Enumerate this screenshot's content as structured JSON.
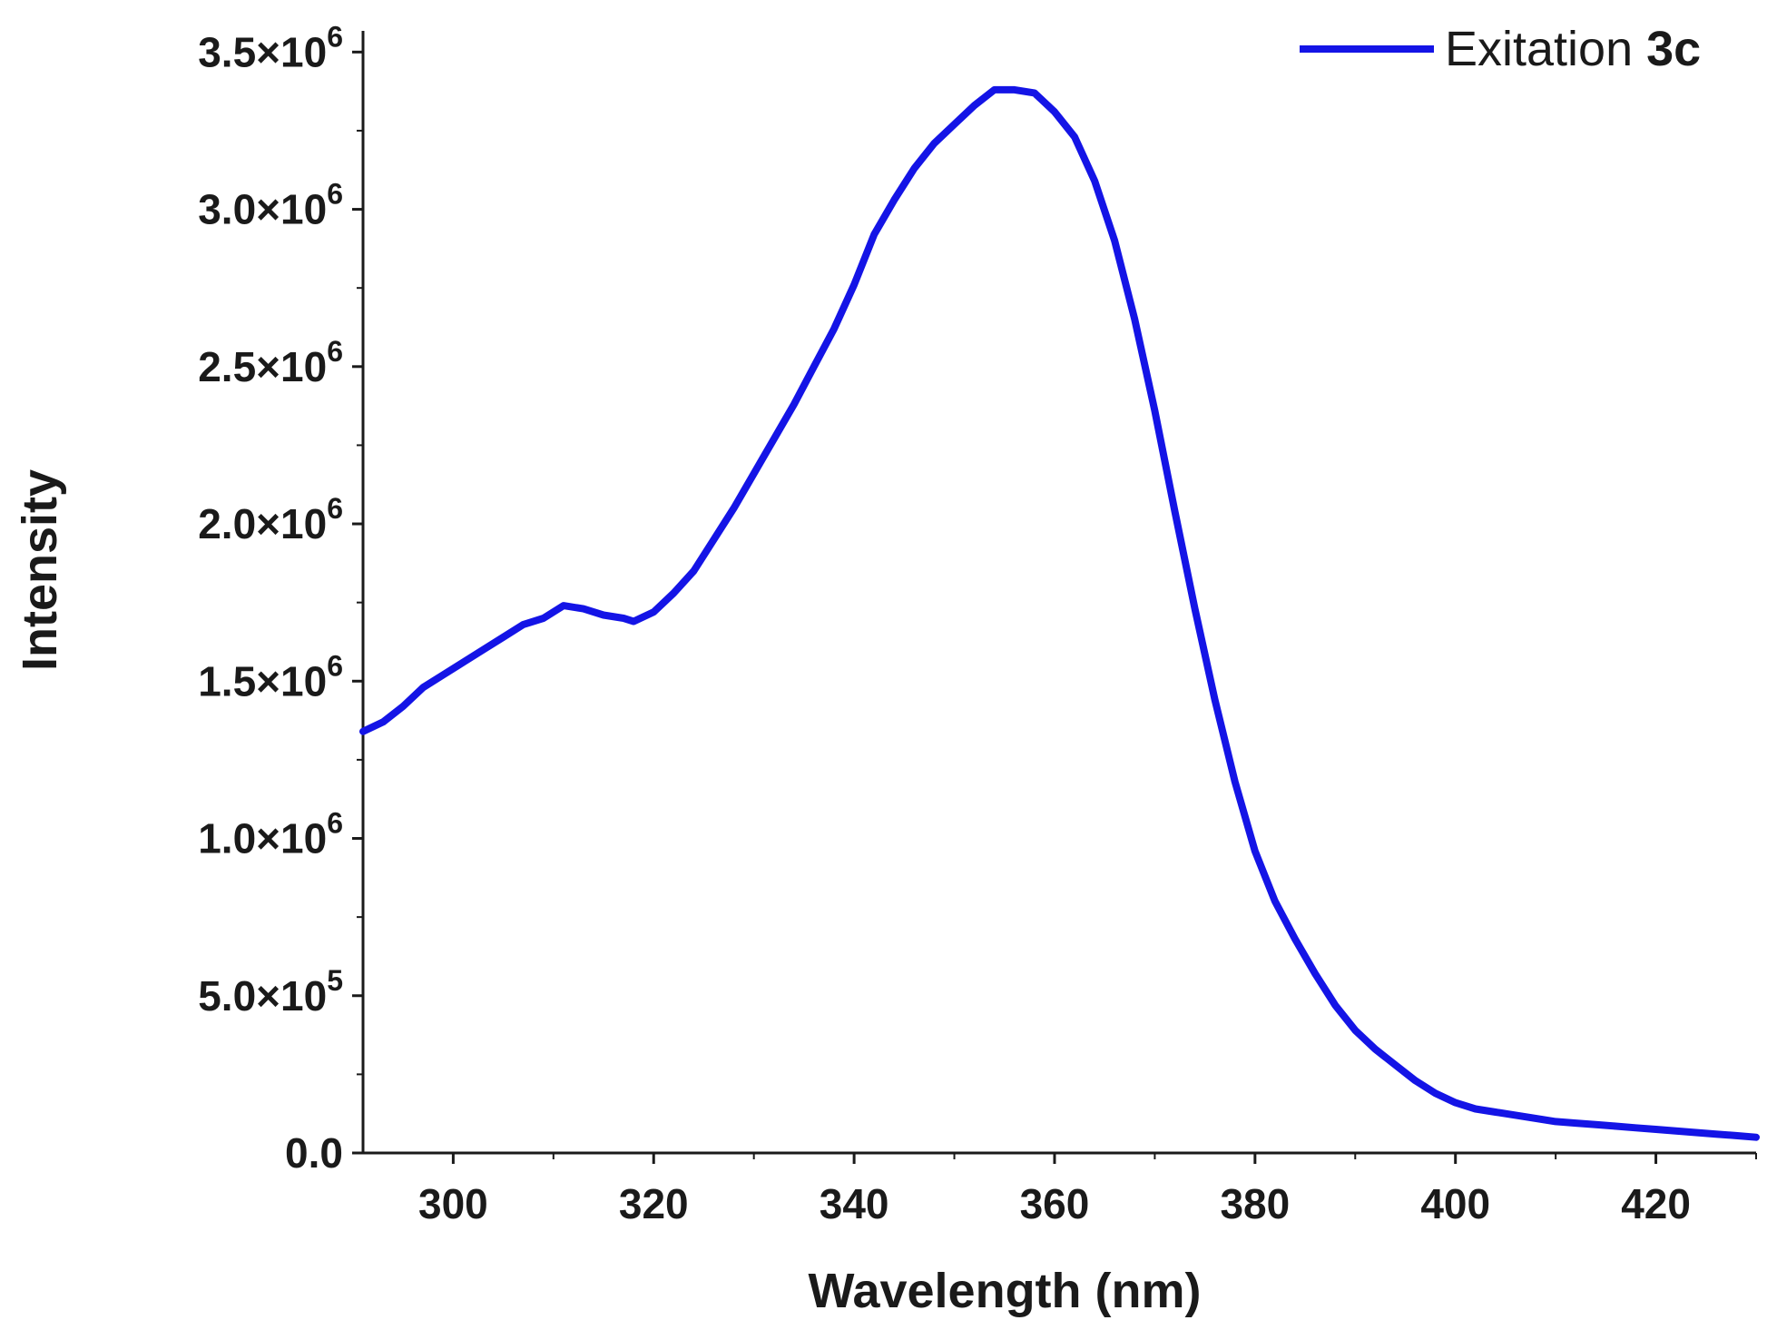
{
  "chart_data": {
    "type": "line",
    "title": "",
    "xlabel": "Wavelength (nm)",
    "ylabel": "Intensity",
    "xlim": [
      291,
      430
    ],
    "ylim": [
      0,
      3550000
    ],
    "x_ticks": [
      300,
      320,
      340,
      360,
      380,
      400,
      420
    ],
    "x_tick_labels": [
      "300",
      "320",
      "340",
      "360",
      "380",
      "400",
      "420"
    ],
    "y_ticks": [
      {
        "value": 0,
        "mantissa": "0.0",
        "exponent": ""
      },
      {
        "value": 500000,
        "mantissa": "5.0×10",
        "exponent": "5"
      },
      {
        "value": 1000000,
        "mantissa": "1.0×10",
        "exponent": "6"
      },
      {
        "value": 1500000,
        "mantissa": "1.5×10",
        "exponent": "6"
      },
      {
        "value": 2000000,
        "mantissa": "2.0×10",
        "exponent": "6"
      },
      {
        "value": 2500000,
        "mantissa": "2.5×10",
        "exponent": "6"
      },
      {
        "value": 3000000,
        "mantissa": "3.0×10",
        "exponent": "6"
      },
      {
        "value": 3500000,
        "mantissa": "3.5×10",
        "exponent": "6"
      }
    ],
    "grid": false,
    "legend_position": "top-right",
    "series": [
      {
        "name": "Exitation 3c",
        "legend_label": "Exitation ",
        "legend_label_bold": "3c",
        "color": "#1414e6",
        "x": [
          291,
          293,
          295,
          297,
          299,
          301,
          303,
          305,
          307,
          309,
          311,
          313,
          315,
          317,
          318,
          320,
          322,
          324,
          326,
          328,
          330,
          332,
          334,
          336,
          338,
          340,
          342,
          344,
          346,
          348,
          350,
          352,
          354,
          356,
          358,
          360,
          362,
          364,
          366,
          368,
          370,
          372,
          374,
          376,
          378,
          380,
          382,
          384,
          386,
          388,
          390,
          392,
          394,
          396,
          398,
          400,
          402,
          404,
          406,
          408,
          410,
          412,
          414,
          416,
          418,
          420,
          422,
          424,
          426,
          428,
          430
        ],
        "values": [
          1340000,
          1370000,
          1420000,
          1480000,
          1520000,
          1560000,
          1600000,
          1640000,
          1680000,
          1700000,
          1740000,
          1730000,
          1710000,
          1700000,
          1690000,
          1720000,
          1780000,
          1850000,
          1950000,
          2050000,
          2160000,
          2270000,
          2380000,
          2500000,
          2620000,
          2760000,
          2920000,
          3030000,
          3130000,
          3210000,
          3270000,
          3330000,
          3380000,
          3380000,
          3370000,
          3310000,
          3230000,
          3090000,
          2900000,
          2650000,
          2360000,
          2040000,
          1730000,
          1440000,
          1180000,
          960000,
          800000,
          680000,
          570000,
          470000,
          390000,
          330000,
          280000,
          230000,
          190000,
          160000,
          140000,
          130000,
          120000,
          110000,
          100000,
          95000,
          90000,
          85000,
          80000,
          75000,
          70000,
          65000,
          60000,
          55000,
          50000
        ]
      }
    ]
  }
}
